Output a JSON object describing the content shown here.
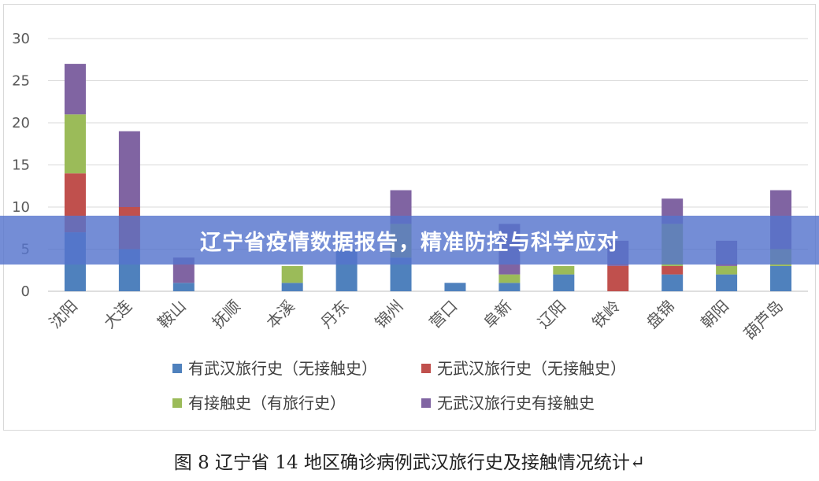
{
  "chart_data": {
    "type": "bar",
    "stacked": true,
    "categories": [
      "沈阳",
      "大连",
      "鞍山",
      "抚顺",
      "本溪",
      "丹东",
      "锦州",
      "营口",
      "阜新",
      "辽阳",
      "铁岭",
      "盘锦",
      "朝阳",
      "葫芦岛"
    ],
    "series": [
      {
        "name": "有武汉旅行史（无接触史）",
        "color": "#4f81bd",
        "values": [
          7,
          5,
          1,
          0,
          1,
          5,
          4,
          1,
          1,
          2,
          0,
          2,
          2,
          3
        ]
      },
      {
        "name": "无武汉旅行史（无接触史）",
        "color": "#c0504d",
        "values": [
          7,
          5,
          0,
          0,
          0,
          0,
          0,
          0,
          0,
          0,
          3,
          1,
          0,
          0
        ]
      },
      {
        "name": "有接触史（有旅行史）",
        "color": "#9bbb59",
        "values": [
          7,
          0,
          0,
          0,
          2,
          0,
          4,
          0,
          1,
          1,
          0,
          5,
          1,
          2
        ]
      },
      {
        "name": "无武汉旅行史有接触史",
        "color": "#8064a2",
        "values": [
          6,
          9,
          3,
          0,
          0,
          0,
          4,
          0,
          6,
          0,
          3,
          3,
          3,
          7
        ]
      }
    ],
    "ylim": [
      0,
      30
    ],
    "yticks": [
      0,
      5,
      10,
      15,
      20,
      25,
      30
    ],
    "grid": true,
    "legend_position": "bottom"
  },
  "banner": {
    "text": "辽宁省疫情数据报告，精准防控与科学应对"
  },
  "caption": {
    "text": "图 8   辽宁省 14 地区确诊病例武汉旅行史及接触情况统计↵"
  }
}
